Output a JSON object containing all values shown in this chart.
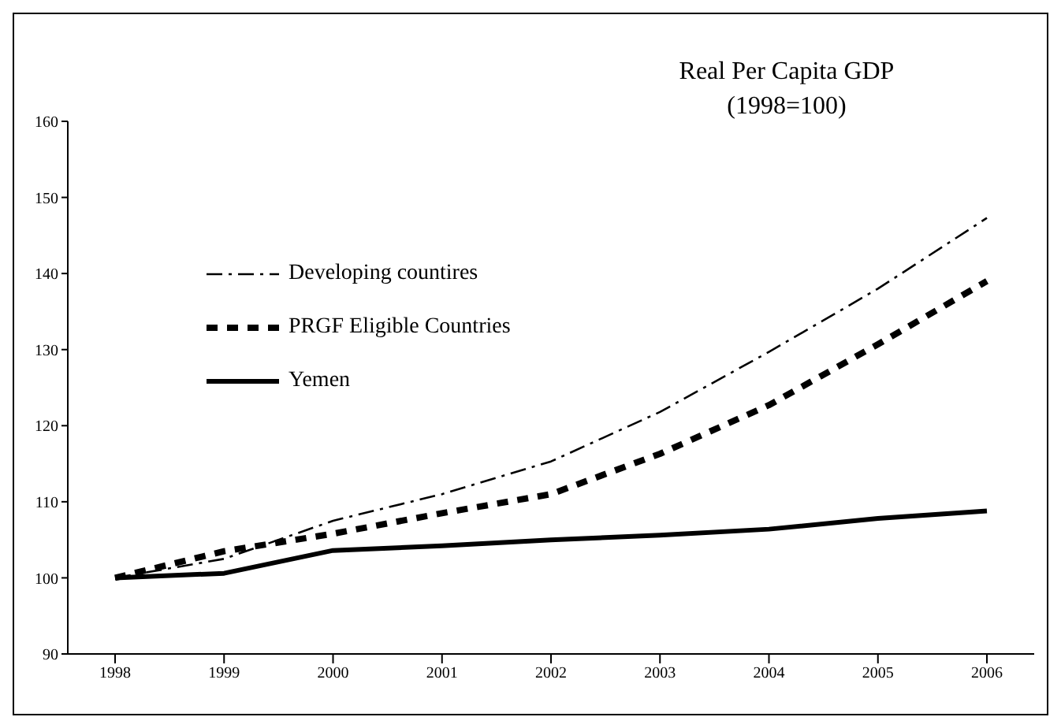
{
  "chart_data": {
    "type": "line",
    "title": "Real Per Capita GDP",
    "subtitle": "(1998=100)",
    "categories": [
      "1998",
      "1999",
      "2000",
      "2001",
      "2002",
      "2003",
      "2004",
      "2005",
      "2006"
    ],
    "series": [
      {
        "name": "Developing countires",
        "color": "#000000",
        "line_style": "dashdot",
        "values": [
          100,
          102.5,
          107.5,
          111,
          115.3,
          121.8,
          129.7,
          138,
          147.3
        ]
      },
      {
        "name": "PRGF Eligible Countries",
        "color": "#000000",
        "line_style": "dashed",
        "values": [
          100,
          103.5,
          105.8,
          108.5,
          111,
          116.3,
          122.7,
          130.7,
          139
        ]
      },
      {
        "name": "Yemen",
        "color": "#000000",
        "line_style": "solid",
        "values": [
          100,
          100.6,
          103.6,
          104.2,
          105,
          105.6,
          106.4,
          107.8,
          108.8
        ]
      }
    ],
    "ylim": [
      90,
      160
    ],
    "yticks": [
      90,
      100,
      110,
      120,
      130,
      140,
      150,
      160
    ],
    "grid": false,
    "legend": "top left",
    "marker": "none"
  }
}
